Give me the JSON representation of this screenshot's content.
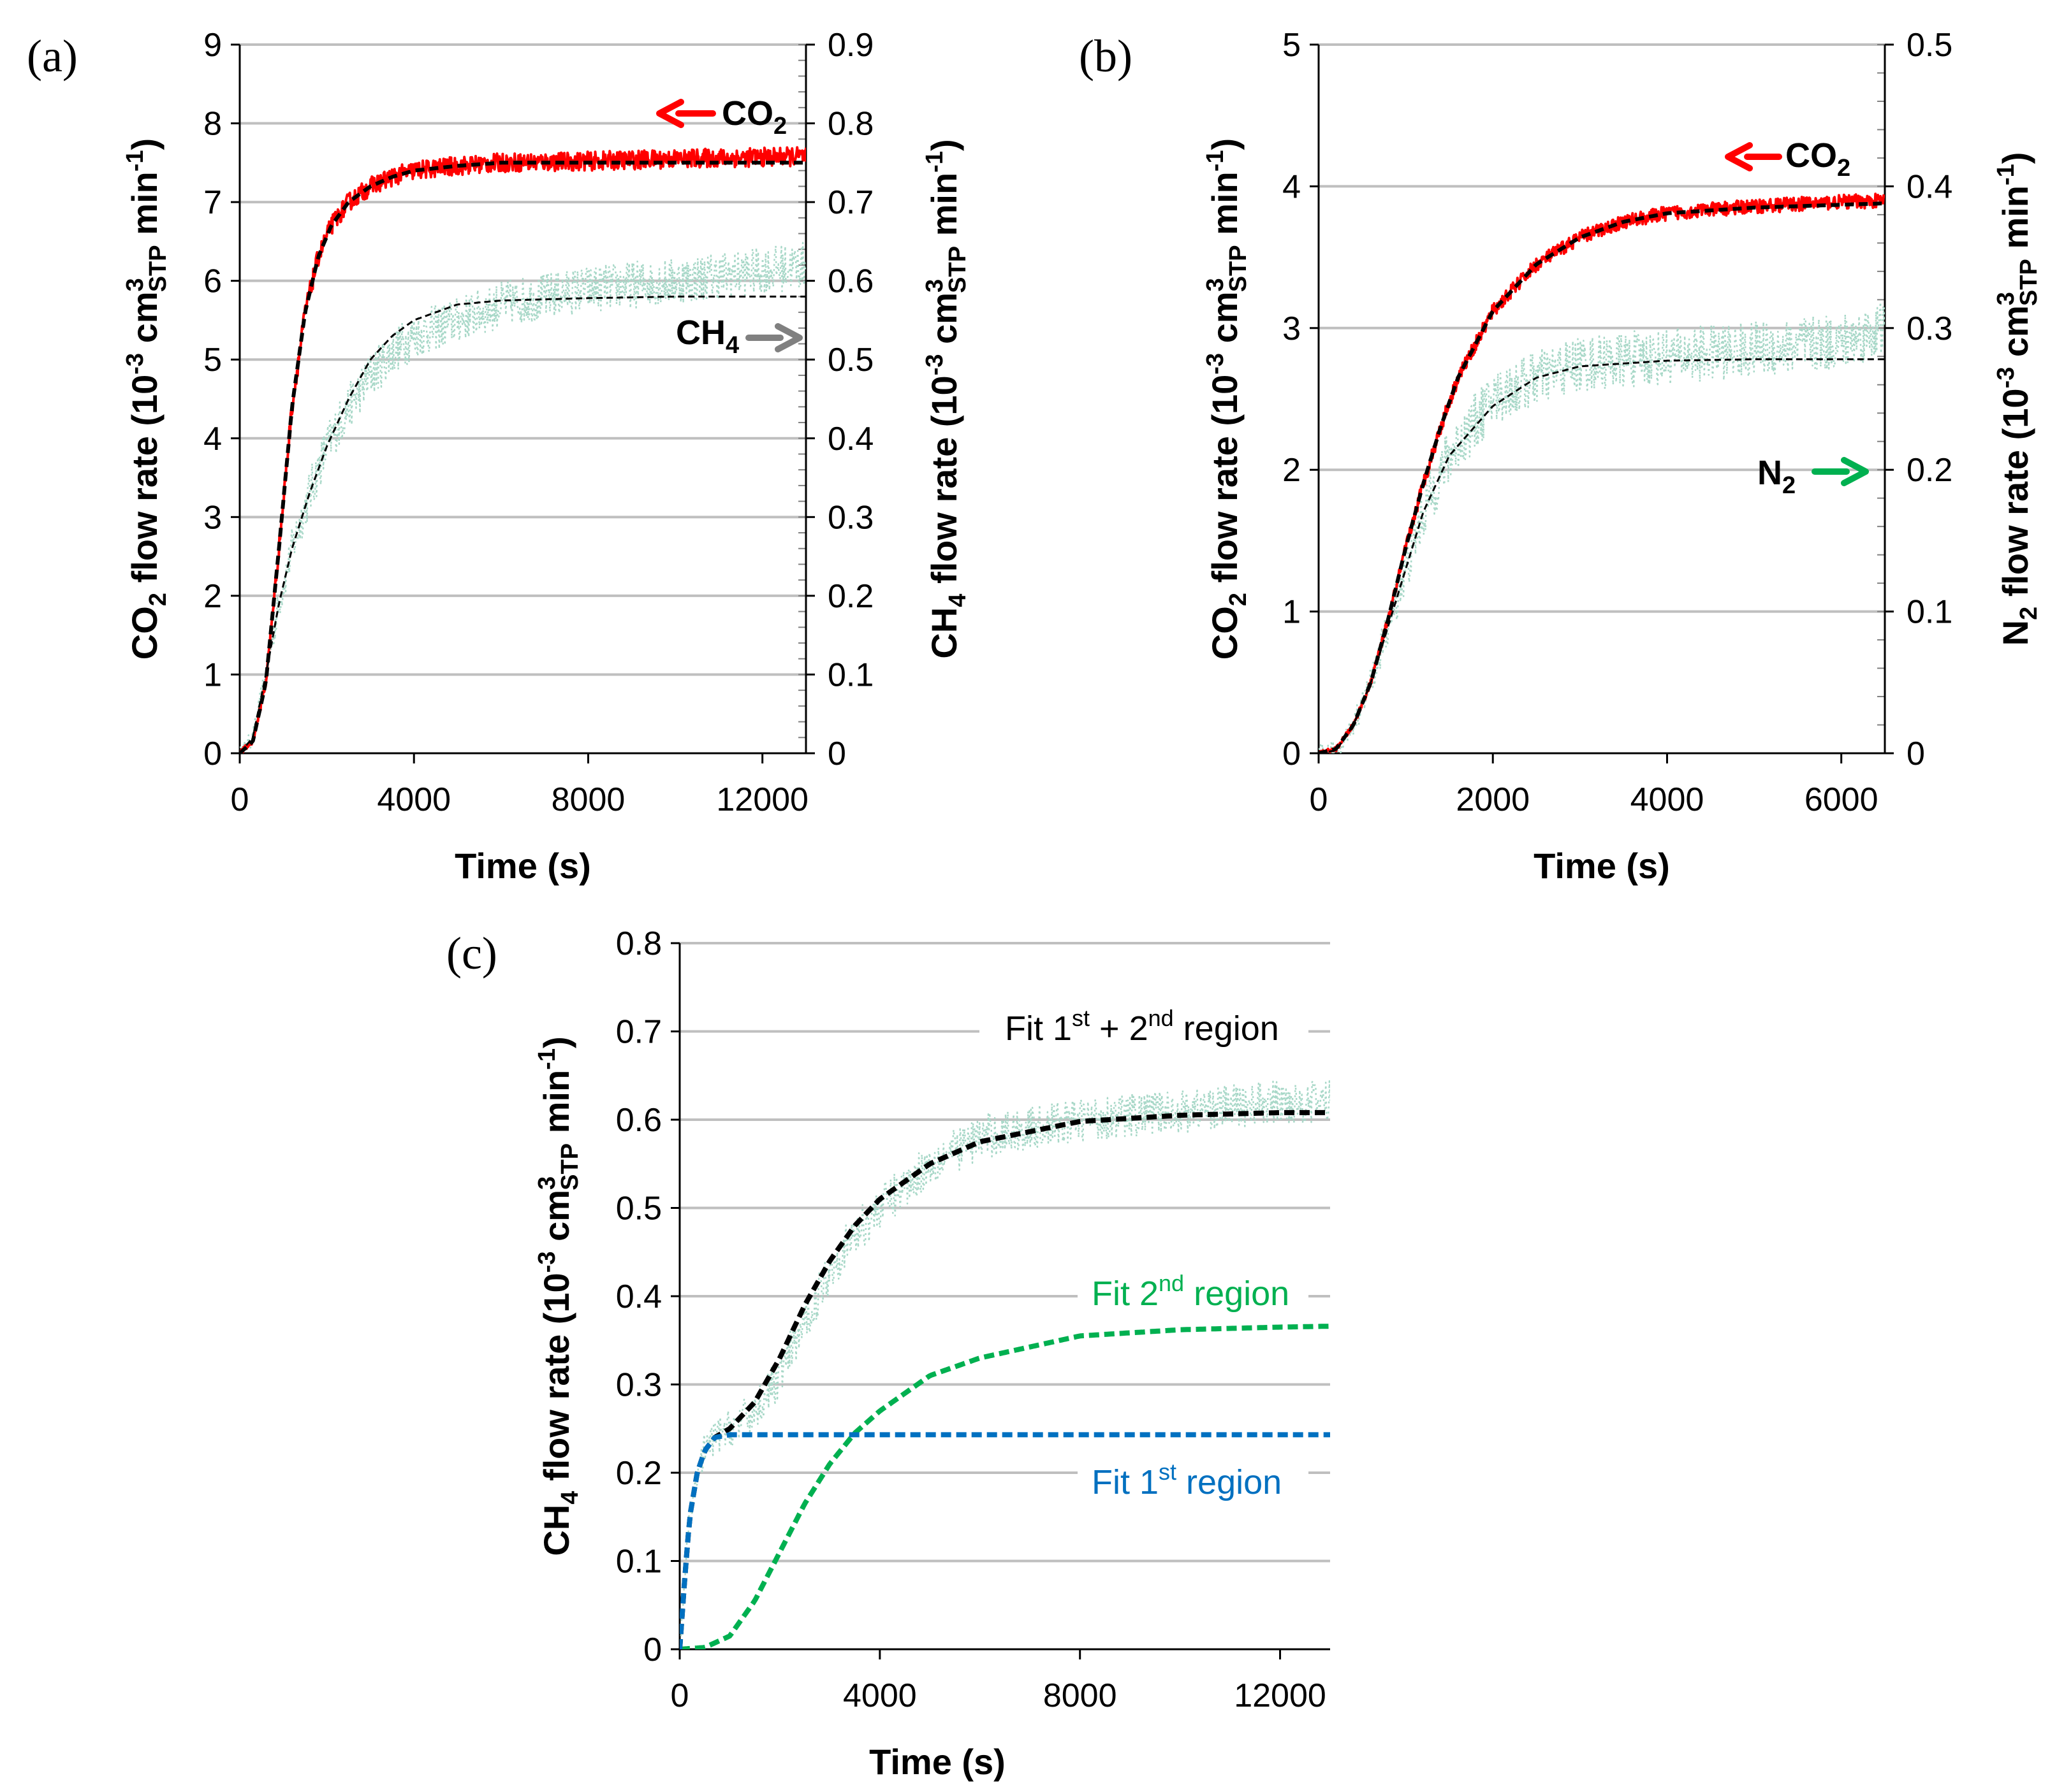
{
  "chart_data": [
    {
      "panel": "(a)",
      "type": "line",
      "xlabel": "Time (s)",
      "ylabel": "CO2 flow rate (10-3 cm3STP min-1)",
      "ylabel2": "CH4 flow rate (10-3 cm3STP min-1)",
      "ylabel_parts": {
        "a": "CO",
        "b": "2",
        "c": " flow rate  (10",
        "d": "-3",
        "e": " cm",
        "f": "3",
        "g": "STP",
        "h": " min",
        "i": "-1",
        "j": ")"
      },
      "ylabel2_parts": {
        "a": "CH",
        "b": "4",
        "c": " flow rate  (10",
        "d": "-3",
        "e": " cm",
        "f": "3",
        "g": "STP",
        "h": " min",
        "i": "-1",
        "j": ")"
      },
      "xlim": [
        0,
        13000
      ],
      "ylim": [
        0,
        9
      ],
      "ylim2": [
        0,
        0.9
      ],
      "xticks": [
        0,
        4000,
        8000,
        12000
      ],
      "xtick_labels": [
        "0",
        "4000",
        "8000",
        "12000"
      ],
      "yticks": [
        0,
        1,
        2,
        3,
        4,
        5,
        6,
        7,
        8,
        9
      ],
      "ytick_labels": [
        "0",
        "1",
        "2",
        "3",
        "4",
        "5",
        "6",
        "7",
        "8",
        "9"
      ],
      "yticks2": [
        0,
        0.1,
        0.2,
        0.3,
        0.4,
        0.5,
        0.6,
        0.7,
        0.8,
        0.9
      ],
      "ytick2_labels": [
        "0",
        "0.1",
        "0.2",
        "0.3",
        "0.4",
        "0.5",
        "0.6",
        "0.7",
        "0.8",
        "0.9"
      ],
      "annotations": [
        {
          "base": "CO",
          "sub": "2",
          "axis": "left",
          "arrow": "left",
          "color": "#ff0000"
        },
        {
          "base": "CH",
          "sub": "4",
          "axis": "right",
          "arrow": "right",
          "color": "#808080"
        }
      ],
      "series": [
        {
          "name": "CO2 measured",
          "axis": "left",
          "color": "#ff0000",
          "style": "noisy",
          "noise": 0.12,
          "x": [
            0,
            300,
            600,
            900,
            1200,
            1500,
            1800,
            2100,
            2500,
            3000,
            3500,
            4000,
            5000,
            6000,
            8000,
            10000,
            13000
          ],
          "y": [
            0,
            0.15,
            0.9,
            2.6,
            4.4,
            5.6,
            6.3,
            6.7,
            7.0,
            7.2,
            7.32,
            7.4,
            7.46,
            7.5,
            7.52,
            7.55,
            7.58
          ]
        },
        {
          "name": "CO2 fit",
          "axis": "left",
          "color": "#000000",
          "style": "dashed",
          "x": [
            0,
            300,
            600,
            900,
            1200,
            1500,
            1800,
            2100,
            2500,
            3000,
            3500,
            4000,
            5000,
            6000,
            8000,
            10000,
            13000
          ],
          "y": [
            0,
            0.15,
            0.9,
            2.6,
            4.4,
            5.6,
            6.3,
            6.7,
            7.0,
            7.2,
            7.32,
            7.4,
            7.46,
            7.5,
            7.5,
            7.5,
            7.5
          ]
        },
        {
          "name": "CH4 measured",
          "axis": "right",
          "color": "#a8d8c8",
          "style": "dotted-noisy",
          "noise": 0.03,
          "x": [
            0,
            300,
            600,
            900,
            1200,
            1600,
            2000,
            2500,
            3000,
            3500,
            4000,
            5000,
            6000,
            8000,
            10000,
            13000
          ],
          "y": [
            0,
            0.02,
            0.1,
            0.19,
            0.26,
            0.33,
            0.39,
            0.44,
            0.48,
            0.51,
            0.53,
            0.55,
            0.57,
            0.59,
            0.6,
            0.62
          ]
        },
        {
          "name": "CH4 fit",
          "axis": "right",
          "color": "#000000",
          "style": "thin-dashed",
          "x": [
            0,
            300,
            600,
            900,
            1200,
            1600,
            2000,
            2500,
            3000,
            3500,
            4000,
            5000,
            6000,
            8000,
            10000,
            13000
          ],
          "y": [
            0,
            0.02,
            0.1,
            0.19,
            0.26,
            0.33,
            0.39,
            0.45,
            0.5,
            0.53,
            0.55,
            0.57,
            0.575,
            0.578,
            0.58,
            0.58
          ]
        }
      ]
    },
    {
      "panel": "(b)",
      "type": "line",
      "xlabel": "Time (s)",
      "ylabel": "CO2 flow rate (10-3 cm3STP min-1)",
      "ylabel2": "N2 flow rate (10-3 cm3STP min-1)",
      "ylabel_parts": {
        "a": "CO",
        "b": "2",
        "c": " flow rate  (10",
        "d": "-3",
        "e": " cm",
        "f": "3",
        "g": "STP",
        "h": " min",
        "i": "-1",
        "j": ")"
      },
      "ylabel2_parts": {
        "a": "N",
        "b": "2",
        "c": " flow rate  (10",
        "d": "-3",
        "e": " cm",
        "f": "3",
        "g": "STP",
        "h": " min",
        "i": "-1",
        "j": ")"
      },
      "xlim": [
        0,
        6500
      ],
      "ylim": [
        0,
        5
      ],
      "ylim2": [
        0,
        0.5
      ],
      "xticks": [
        0,
        2000,
        4000,
        6000
      ],
      "xtick_labels": [
        "0",
        "2000",
        "4000",
        "6000"
      ],
      "yticks": [
        0,
        1,
        2,
        3,
        4,
        5
      ],
      "ytick_labels": [
        "0",
        "1",
        "2",
        "3",
        "4",
        "5"
      ],
      "yticks2": [
        0,
        0.1,
        0.2,
        0.3,
        0.4,
        0.5
      ],
      "ytick2_labels": [
        "0",
        "0.1",
        "0.2",
        "0.3",
        "0.4",
        "0.5"
      ],
      "annotations": [
        {
          "base": "CO",
          "sub": "2",
          "axis": "left",
          "arrow": "left",
          "color": "#ff0000"
        },
        {
          "base": "N",
          "sub": "2",
          "axis": "right",
          "arrow": "right",
          "color": "#00b050"
        }
      ],
      "series": [
        {
          "name": "CO2 measured",
          "axis": "left",
          "color": "#ff0000",
          "style": "noisy",
          "noise": 0.05,
          "x": [
            0,
            200,
            400,
            600,
            800,
            1000,
            1200,
            1400,
            1600,
            2000,
            2500,
            3000,
            3500,
            4000,
            5000,
            6000,
            6500
          ],
          "y": [
            0,
            0.03,
            0.2,
            0.5,
            0.95,
            1.45,
            1.9,
            2.3,
            2.65,
            3.12,
            3.45,
            3.64,
            3.75,
            3.81,
            3.86,
            3.89,
            3.9
          ]
        },
        {
          "name": "CO2 fit",
          "axis": "left",
          "color": "#000000",
          "style": "dashed",
          "x": [
            0,
            200,
            400,
            600,
            800,
            1000,
            1200,
            1400,
            1600,
            2000,
            2500,
            3000,
            3500,
            4000,
            5000,
            6000,
            6500
          ],
          "y": [
            0,
            0.03,
            0.2,
            0.5,
            0.95,
            1.45,
            1.9,
            2.3,
            2.65,
            3.12,
            3.45,
            3.64,
            3.75,
            3.81,
            3.85,
            3.87,
            3.88
          ]
        },
        {
          "name": "N2 measured",
          "axis": "right",
          "color": "#a8d8c8",
          "style": "dotted-noisy",
          "noise": 0.02,
          "x": [
            0,
            200,
            400,
            600,
            800,
            1000,
            1200,
            1500,
            2000,
            2500,
            3000,
            4000,
            5000,
            6000,
            6500
          ],
          "y": [
            0,
            0.002,
            0.02,
            0.05,
            0.09,
            0.13,
            0.17,
            0.21,
            0.25,
            0.265,
            0.275,
            0.28,
            0.285,
            0.29,
            0.3
          ]
        },
        {
          "name": "N2 fit",
          "axis": "right",
          "color": "#000000",
          "style": "thin-dashed",
          "x": [
            0,
            200,
            400,
            600,
            800,
            1000,
            1200,
            1500,
            2000,
            2500,
            3000,
            4000,
            5000,
            6000,
            6500
          ],
          "y": [
            0,
            0.002,
            0.02,
            0.05,
            0.09,
            0.13,
            0.17,
            0.21,
            0.245,
            0.265,
            0.273,
            0.277,
            0.278,
            0.278,
            0.278
          ]
        }
      ]
    },
    {
      "panel": "(c)",
      "type": "line",
      "xlabel": "Time (s)",
      "ylabel": "CH4 flow rate (10-3 cm3STP min-1)",
      "ylabel_parts": {
        "a": "CH",
        "b": "4",
        "c": " flow rate  (10",
        "d": "-3",
        "e": " cm",
        "f": "3",
        "g": "STP",
        "h": " min",
        "i": "-1",
        "j": ")"
      },
      "xlim": [
        0,
        13000
      ],
      "ylim": [
        0,
        0.8
      ],
      "xticks": [
        0,
        4000,
        8000,
        12000
      ],
      "xtick_labels": [
        "0",
        "4000",
        "8000",
        "12000"
      ],
      "yticks": [
        0,
        0.1,
        0.2,
        0.3,
        0.4,
        0.5,
        0.6,
        0.7,
        0.8
      ],
      "ytick_labels": [
        "0",
        "0.1",
        "0.2",
        "0.3",
        "0.4",
        "0.5",
        "0.6",
        "0.7",
        "0.8"
      ],
      "annotations": [
        {
          "label": "Fit 1st + 2nd region",
          "parts": {
            "a": "Fit 1",
            "b": "st",
            "c": " + 2",
            "d": "nd",
            "e": " region"
          },
          "color": "#000000"
        },
        {
          "label": "Fit 2nd region",
          "parts": {
            "a": "Fit 2",
            "b": "nd",
            "c": " region"
          },
          "color": "#00b050"
        },
        {
          "label": "Fit 1st region",
          "parts": {
            "a": "Fit 1",
            "b": "st",
            "c": " region"
          },
          "color": "#0070c0"
        }
      ],
      "series": [
        {
          "name": "CH4 measured",
          "color": "#a8d8c8",
          "style": "dotted-noisy",
          "noise": 0.025,
          "x": [
            0,
            100,
            200,
            350,
            500,
            700,
            1000,
            1500,
            2000,
            2500,
            3000,
            3500,
            4000,
            5000,
            6000,
            8000,
            10000,
            12000,
            13000
          ],
          "y": [
            0,
            0.08,
            0.15,
            0.2,
            0.225,
            0.24,
            0.25,
            0.27,
            0.31,
            0.37,
            0.43,
            0.47,
            0.5,
            0.55,
            0.58,
            0.6,
            0.61,
            0.62,
            0.62
          ]
        },
        {
          "name": "Fit 1st + 2nd region",
          "color": "#000000",
          "style": "bold-dashed",
          "x": [
            0,
            100,
            200,
            350,
            500,
            700,
            1000,
            1500,
            2000,
            2500,
            3000,
            3500,
            4000,
            5000,
            6000,
            8000,
            10000,
            12000,
            13000
          ],
          "y": [
            0,
            0.08,
            0.15,
            0.2,
            0.225,
            0.24,
            0.25,
            0.28,
            0.33,
            0.39,
            0.44,
            0.48,
            0.51,
            0.55,
            0.575,
            0.598,
            0.605,
            0.608,
            0.608
          ]
        },
        {
          "name": "Fit 2nd region",
          "color": "#00b050",
          "style": "bold-dashed",
          "x": [
            0,
            500,
            1000,
            1500,
            2000,
            2500,
            3000,
            3500,
            4000,
            5000,
            6000,
            8000,
            10000,
            12000,
            13000
          ],
          "y": [
            0,
            0.002,
            0.015,
            0.055,
            0.11,
            0.165,
            0.21,
            0.245,
            0.27,
            0.31,
            0.33,
            0.355,
            0.362,
            0.365,
            0.366
          ]
        },
        {
          "name": "Fit 1st region",
          "color": "#0070c0",
          "style": "bold-dashed",
          "x": [
            0,
            100,
            200,
            350,
            500,
            700,
            1000,
            2000,
            4000,
            8000,
            13000
          ],
          "y": [
            0,
            0.08,
            0.15,
            0.2,
            0.225,
            0.24,
            0.243,
            0.243,
            0.243,
            0.243,
            0.243
          ]
        }
      ]
    }
  ]
}
